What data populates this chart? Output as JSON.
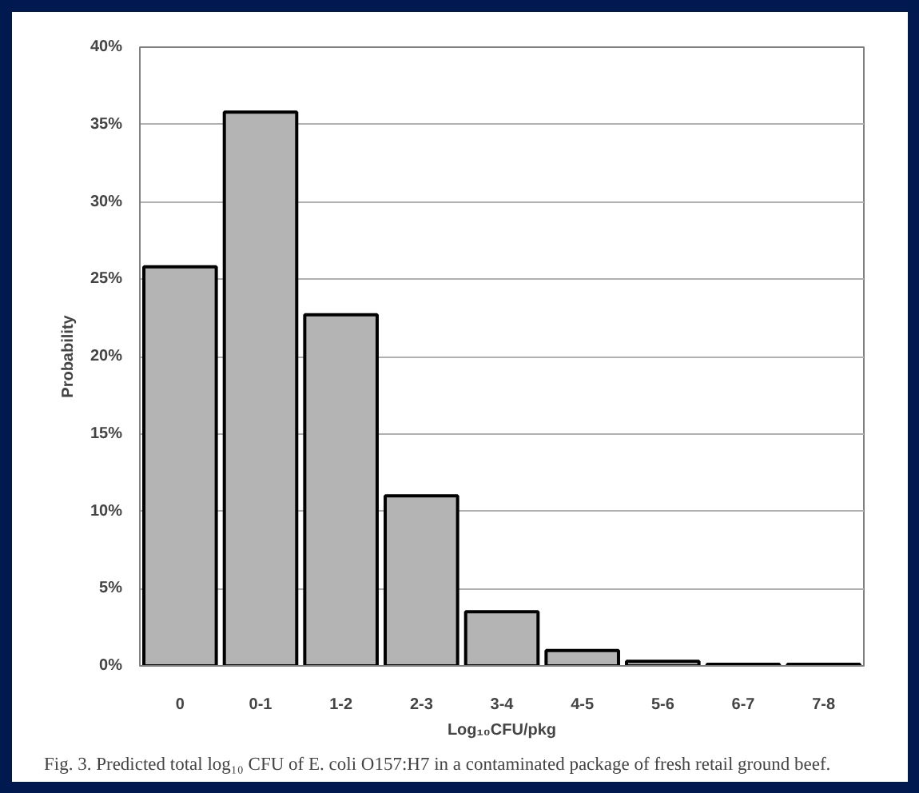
{
  "chart_data": {
    "type": "bar",
    "categories": [
      "0",
      "0-1",
      "1-2",
      "2-3",
      "3-4",
      "4-5",
      "5-6",
      "6-7",
      "7-8"
    ],
    "values": [
      25.8,
      35.8,
      22.7,
      11.0,
      3.5,
      1.0,
      0.3,
      0.1,
      0.1
    ],
    "color": "#b4b4b4",
    "xlabel": "Log₁₀CFU/pkg",
    "ylabel": "Probability",
    "ylim": [
      0,
      40
    ],
    "yticks": [
      {
        "value": 0,
        "label": "0%"
      },
      {
        "value": 5,
        "label": "5%"
      },
      {
        "value": 10,
        "label": "10%"
      },
      {
        "value": 15,
        "label": "15%"
      },
      {
        "value": 20,
        "label": "20%"
      },
      {
        "value": 25,
        "label": "25%"
      },
      {
        "value": 30,
        "label": "30%"
      },
      {
        "value": 35,
        "label": "35%"
      },
      {
        "value": 40,
        "label": "40%"
      }
    ],
    "grid": "y",
    "annotations": [
      "Fig. 3. Predicted total log₁₀ CFU of E. coli O157:H7 in a contaminated package of fresh retail ground beef."
    ]
  }
}
